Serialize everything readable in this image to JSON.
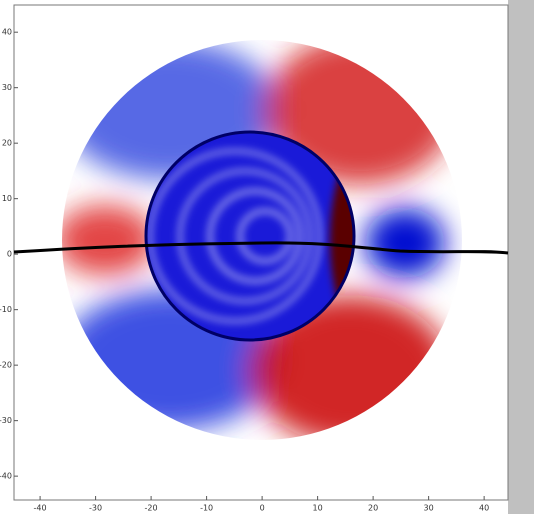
{
  "chart_data": {
    "type": "field",
    "xlim": [
      -44.7,
      44.3
    ],
    "ylim": [
      -44.3,
      44.9
    ],
    "xticks": [
      -40,
      -30,
      -20,
      -10,
      0,
      10,
      20,
      30,
      40
    ],
    "yticks": [
      -40,
      -30,
      -20,
      -10,
      0,
      10,
      20,
      30,
      40
    ]
  }
}
